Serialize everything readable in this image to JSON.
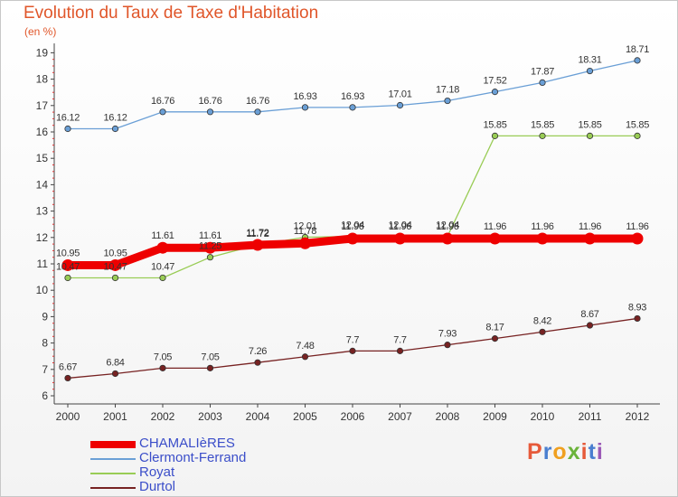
{
  "chart_data": {
    "type": "line",
    "title": "Evolution du Taux de Taxe d'Habitation",
    "subtitle": "(en %)",
    "x": [
      "2000",
      "2001",
      "2002",
      "2003",
      "2004",
      "2005",
      "2006",
      "2007",
      "2008",
      "2009",
      "2010",
      "2011",
      "2012"
    ],
    "yticks": [
      "6",
      "7",
      "8",
      "9",
      "10",
      "11",
      "12",
      "13",
      "14",
      "15",
      "16",
      "17",
      "18",
      "19"
    ],
    "ylim": [
      6,
      19.3
    ],
    "grid": false,
    "legend_position": "bottom-left",
    "series": [
      {
        "name": "CHAMALIèRES",
        "color": "#ee0000",
        "values": [
          10.95,
          10.95,
          11.61,
          11.61,
          11.72,
          11.78,
          11.96,
          11.96,
          11.96,
          11.96,
          11.96,
          11.96,
          11.96
        ],
        "labels": [
          "10.95",
          "10.95",
          "11.61",
          "11.61",
          "11.72",
          "11.78",
          "11.96",
          "11.96",
          "11.96",
          "11.96",
          "11.96",
          "11.96",
          "11.96"
        ]
      },
      {
        "name": "Clermont-Ferrand",
        "color": "#6a9fd6",
        "values": [
          16.12,
          16.12,
          16.76,
          16.76,
          16.76,
          16.93,
          16.93,
          17.01,
          17.18,
          17.52,
          17.87,
          18.31,
          18.71
        ],
        "labels": [
          "16.12",
          "16.12",
          "16.76",
          "16.76",
          "16.76",
          "16.93",
          "16.93",
          "17.01",
          "17.18",
          "17.52",
          "17.87",
          "18.31",
          "18.71"
        ]
      },
      {
        "name": "Royat",
        "color": "#99cc55",
        "values": [
          10.47,
          10.47,
          10.47,
          11.25,
          11.72,
          12.01,
          12.04,
          12.04,
          12.04,
          15.85,
          15.85,
          15.85,
          15.85
        ],
        "labels": [
          "10.47",
          "10.47",
          "10.47",
          "11.25",
          "11.72",
          "12.01",
          "12.04",
          "12.04",
          "12.04",
          "15.85",
          "15.85",
          "15.85",
          "15.85"
        ]
      },
      {
        "name": "Durtol",
        "color": "#772222",
        "values": [
          6.67,
          6.84,
          7.05,
          7.05,
          7.26,
          7.48,
          7.7,
          7.7,
          7.93,
          8.17,
          8.42,
          8.67,
          8.93
        ],
        "labels": [
          "6.67",
          "6.84",
          "7.05",
          "7.05",
          "7.26",
          "7.48",
          "7.7",
          "7.7",
          "7.93",
          "8.17",
          "8.42",
          "8.67",
          "8.93"
        ]
      }
    ]
  },
  "logo": {
    "letters": [
      "P",
      "r",
      "o",
      "x",
      "i",
      "t",
      "i"
    ]
  }
}
